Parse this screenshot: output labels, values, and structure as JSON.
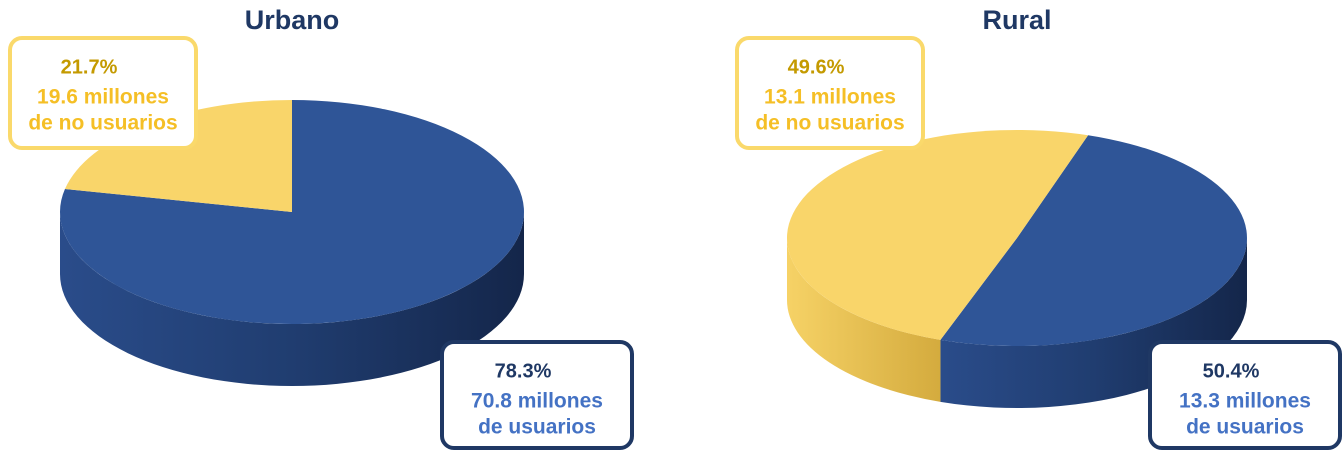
{
  "chart_data": [
    {
      "type": "pie",
      "title": "Urbano",
      "values": [
        78.3,
        21.7
      ],
      "value_labels": [
        "78.3%",
        "21.7%"
      ],
      "descriptions": [
        [
          "70.8 millones",
          "de usuarios"
        ],
        [
          "19.6 millones",
          "de no usuarios"
        ]
      ],
      "colors": [
        "#2f5597",
        "#f9d56a"
      ]
    },
    {
      "type": "pie",
      "title": "Rural",
      "values": [
        50.4,
        49.6
      ],
      "value_labels": [
        "50.4%",
        "49.6%"
      ],
      "descriptions": [
        [
          "13.3 millones",
          "de usuarios"
        ],
        [
          "13.1 millones",
          "de no usuarios"
        ]
      ],
      "colors": [
        "#2f5597",
        "#f9d56a"
      ]
    }
  ]
}
